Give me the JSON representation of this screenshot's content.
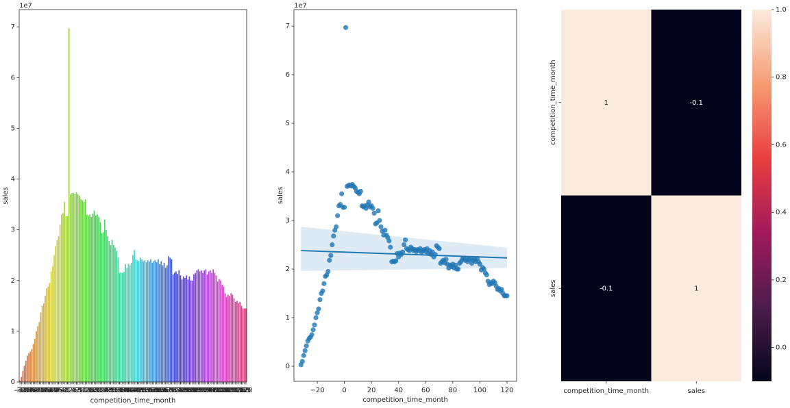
{
  "chart_data": [
    {
      "type": "bar",
      "xlabel": "competition_time_month",
      "ylabel": "sales",
      "offset_label": "1e7",
      "palette": "husl",
      "categories": [
        -32,
        -31,
        -30,
        -29,
        -28,
        -27,
        -26,
        -25,
        -24,
        -23,
        -22,
        -21,
        -20,
        -19,
        -18,
        -17,
        -16,
        -15,
        -14,
        -13,
        -12,
        -11,
        -10,
        -9,
        -8,
        -7,
        -6,
        -5,
        -4,
        -3,
        -2,
        -1,
        0,
        1,
        2,
        3,
        4,
        5,
        6,
        7,
        8,
        9,
        10,
        11,
        12,
        13,
        14,
        15,
        16,
        17,
        18,
        19,
        20,
        21,
        22,
        23,
        24,
        25,
        26,
        27,
        28,
        29,
        30,
        31,
        32,
        33,
        34,
        35,
        36,
        37,
        38,
        39,
        40,
        41,
        42,
        43,
        44,
        45,
        46,
        47,
        48,
        49,
        50,
        51,
        52,
        53,
        54,
        55,
        56,
        57,
        58,
        59,
        60,
        61,
        62,
        63,
        64,
        65,
        66,
        67,
        68,
        69,
        70,
        71,
        72,
        73,
        74,
        75,
        76,
        77,
        78,
        79,
        80,
        81,
        82,
        83,
        84,
        85,
        86,
        87,
        88,
        89,
        90,
        91,
        92,
        93,
        94,
        95,
        96,
        97,
        98,
        99,
        100,
        101,
        102,
        103,
        104,
        105,
        106,
        107,
        108,
        109,
        110,
        111,
        112,
        113,
        114,
        115,
        116,
        117,
        118,
        119,
        120
      ],
      "values": [
        0.03,
        0.1,
        0.22,
        0.32,
        0.42,
        0.52,
        0.57,
        0.6,
        0.65,
        0.75,
        0.85,
        1.0,
        1.1,
        1.18,
        1.37,
        1.5,
        1.55,
        1.7,
        1.85,
        1.88,
        1.95,
        2.18,
        2.28,
        2.5,
        2.68,
        2.8,
        2.87,
        3.1,
        3.3,
        3.33,
        3.55,
        3.27,
        3.27,
        6.97,
        3.7,
        3.72,
        3.73,
        3.71,
        3.74,
        3.7,
        3.67,
        3.6,
        3.58,
        3.55,
        3.6,
        3.3,
        3.28,
        3.3,
        3.25,
        3.32,
        3.38,
        3.28,
        3.3,
        3.25,
        3.15,
        2.93,
        2.95,
        3.2,
        3.0,
        2.87,
        2.78,
        2.7,
        2.8,
        2.7,
        2.65,
        2.58,
        2.45,
        2.15,
        2.16,
        2.15,
        2.17,
        2.32,
        2.25,
        2.33,
        2.3,
        2.35,
        2.5,
        2.6,
        2.42,
        2.4,
        2.38,
        2.45,
        2.42,
        2.38,
        2.4,
        2.36,
        2.4,
        2.38,
        2.42,
        2.35,
        2.38,
        2.4,
        2.36,
        2.42,
        2.32,
        2.38,
        2.3,
        2.35,
        2.25,
        2.3,
        2.48,
        2.45,
        2.42,
        2.12,
        2.15,
        2.18,
        2.13,
        2.2,
        2.1,
        2.02,
        2.08,
        2.05,
        2.1,
        2.02,
        2.08,
        2.0,
        2.0,
        2.12,
        2.15,
        2.2,
        2.22,
        2.18,
        2.2,
        2.15,
        2.2,
        2.22,
        2.12,
        2.18,
        2.2,
        2.15,
        2.22,
        2.15,
        2.1,
        1.98,
        2.03,
        2.0,
        1.92,
        1.88,
        1.75,
        1.68,
        1.72,
        1.7,
        1.75,
        1.72,
        1.65,
        1.58,
        1.6,
        1.55,
        1.58,
        1.5,
        1.45,
        1.45,
        1.45
      ],
      "ylim": [
        0,
        7.34
      ],
      "yticks": [
        0,
        1,
        2,
        3,
        4,
        5,
        6,
        7
      ]
    },
    {
      "type": "scatter",
      "xlabel": "competition_time_month",
      "ylabel": "sales",
      "offset_label": "1e7",
      "color": "#1f77b4",
      "x": [
        -32,
        -31,
        -30,
        -29,
        -28,
        -27,
        -26,
        -25,
        -24,
        -23,
        -22,
        -21,
        -20,
        -19,
        -18,
        -17,
        -16,
        -15,
        -14,
        -13,
        -12,
        -11,
        -10,
        -9,
        -8,
        -7,
        -6,
        -5,
        -4,
        -3,
        -2,
        -1,
        0,
        1,
        2,
        3,
        4,
        5,
        6,
        7,
        8,
        9,
        10,
        11,
        12,
        13,
        14,
        15,
        16,
        17,
        18,
        19,
        20,
        21,
        22,
        23,
        24,
        25,
        26,
        27,
        28,
        29,
        30,
        31,
        32,
        33,
        34,
        35,
        36,
        37,
        38,
        39,
        40,
        41,
        42,
        43,
        44,
        45,
        46,
        47,
        48,
        49,
        50,
        51,
        52,
        53,
        54,
        55,
        56,
        57,
        58,
        59,
        60,
        61,
        62,
        63,
        64,
        65,
        66,
        67,
        68,
        69,
        70,
        71,
        72,
        73,
        74,
        75,
        76,
        77,
        78,
        79,
        80,
        81,
        82,
        83,
        84,
        85,
        86,
        87,
        88,
        89,
        90,
        91,
        92,
        93,
        94,
        95,
        96,
        97,
        98,
        99,
        100,
        101,
        102,
        103,
        104,
        105,
        106,
        107,
        108,
        109,
        110,
        111,
        112,
        113,
        114,
        115,
        116,
        117,
        118,
        119,
        120
      ],
      "values": [
        0.03,
        0.1,
        0.22,
        0.32,
        0.42,
        0.52,
        0.57,
        0.6,
        0.65,
        0.75,
        0.85,
        1.0,
        1.1,
        1.18,
        1.37,
        1.5,
        1.55,
        1.7,
        1.85,
        1.88,
        1.95,
        2.18,
        2.28,
        2.5,
        2.68,
        2.8,
        2.87,
        3.1,
        3.3,
        3.33,
        3.55,
        3.27,
        3.27,
        6.97,
        3.7,
        3.72,
        3.73,
        3.71,
        3.74,
        3.7,
        3.67,
        3.6,
        3.58,
        3.55,
        3.6,
        3.3,
        3.28,
        3.3,
        3.25,
        3.32,
        3.38,
        3.28,
        3.3,
        3.25,
        3.15,
        2.93,
        2.95,
        3.2,
        3.0,
        2.87,
        2.78,
        2.7,
        2.8,
        2.7,
        2.65,
        2.58,
        2.45,
        2.15,
        2.16,
        2.15,
        2.17,
        2.32,
        2.25,
        2.33,
        2.3,
        2.35,
        2.5,
        2.6,
        2.42,
        2.4,
        2.38,
        2.45,
        2.42,
        2.38,
        2.4,
        2.36,
        2.4,
        2.38,
        2.42,
        2.35,
        2.38,
        2.4,
        2.36,
        2.42,
        2.32,
        2.38,
        2.3,
        2.35,
        2.25,
        2.3,
        2.48,
        2.45,
        2.42,
        2.12,
        2.15,
        2.18,
        2.13,
        2.2,
        2.1,
        2.02,
        2.08,
        2.05,
        2.1,
        2.02,
        2.08,
        2.0,
        2.0,
        2.12,
        2.15,
        2.2,
        2.22,
        2.18,
        2.2,
        2.15,
        2.2,
        2.22,
        2.12,
        2.18,
        2.2,
        2.15,
        2.22,
        2.15,
        2.1,
        1.98,
        2.03,
        2.0,
        1.92,
        1.88,
        1.75,
        1.68,
        1.72,
        1.7,
        1.75,
        1.72,
        1.65,
        1.58,
        1.6,
        1.55,
        1.58,
        1.5,
        1.45,
        1.45,
        1.45
      ],
      "regression": {
        "x": [
          -32,
          120
        ],
        "y": [
          2.38,
          2.23
        ],
        "ci_lower": [
          1.96,
          2.02
        ],
        "ci_upper": [
          2.87,
          2.44
        ]
      },
      "xlim": [
        -37.2,
        127.1
      ],
      "xticks": [
        {
          "value": -20,
          "label": "−20"
        },
        0,
        20,
        40,
        60,
        80,
        100,
        120
      ],
      "ylim": [
        -0.31,
        7.34
      ],
      "yticks": [
        0,
        1,
        2,
        3,
        4,
        5,
        6,
        7
      ]
    },
    {
      "type": "heatmap",
      "colormap": "rocket",
      "x_categories": [
        "competition_time_month",
        "sales"
      ],
      "y_categories": [
        "competition_time_month",
        "sales"
      ],
      "values": [
        [
          1,
          -0.1
        ],
        [
          -0.1,
          1
        ]
      ],
      "clim": [
        -0.1,
        1.0
      ],
      "cbar_ticks": [
        {
          "value": 0,
          "label": "0.0"
        },
        0.2,
        0.4,
        0.6,
        0.8,
        {
          "value": 1,
          "label": "1.0"
        }
      ]
    }
  ]
}
